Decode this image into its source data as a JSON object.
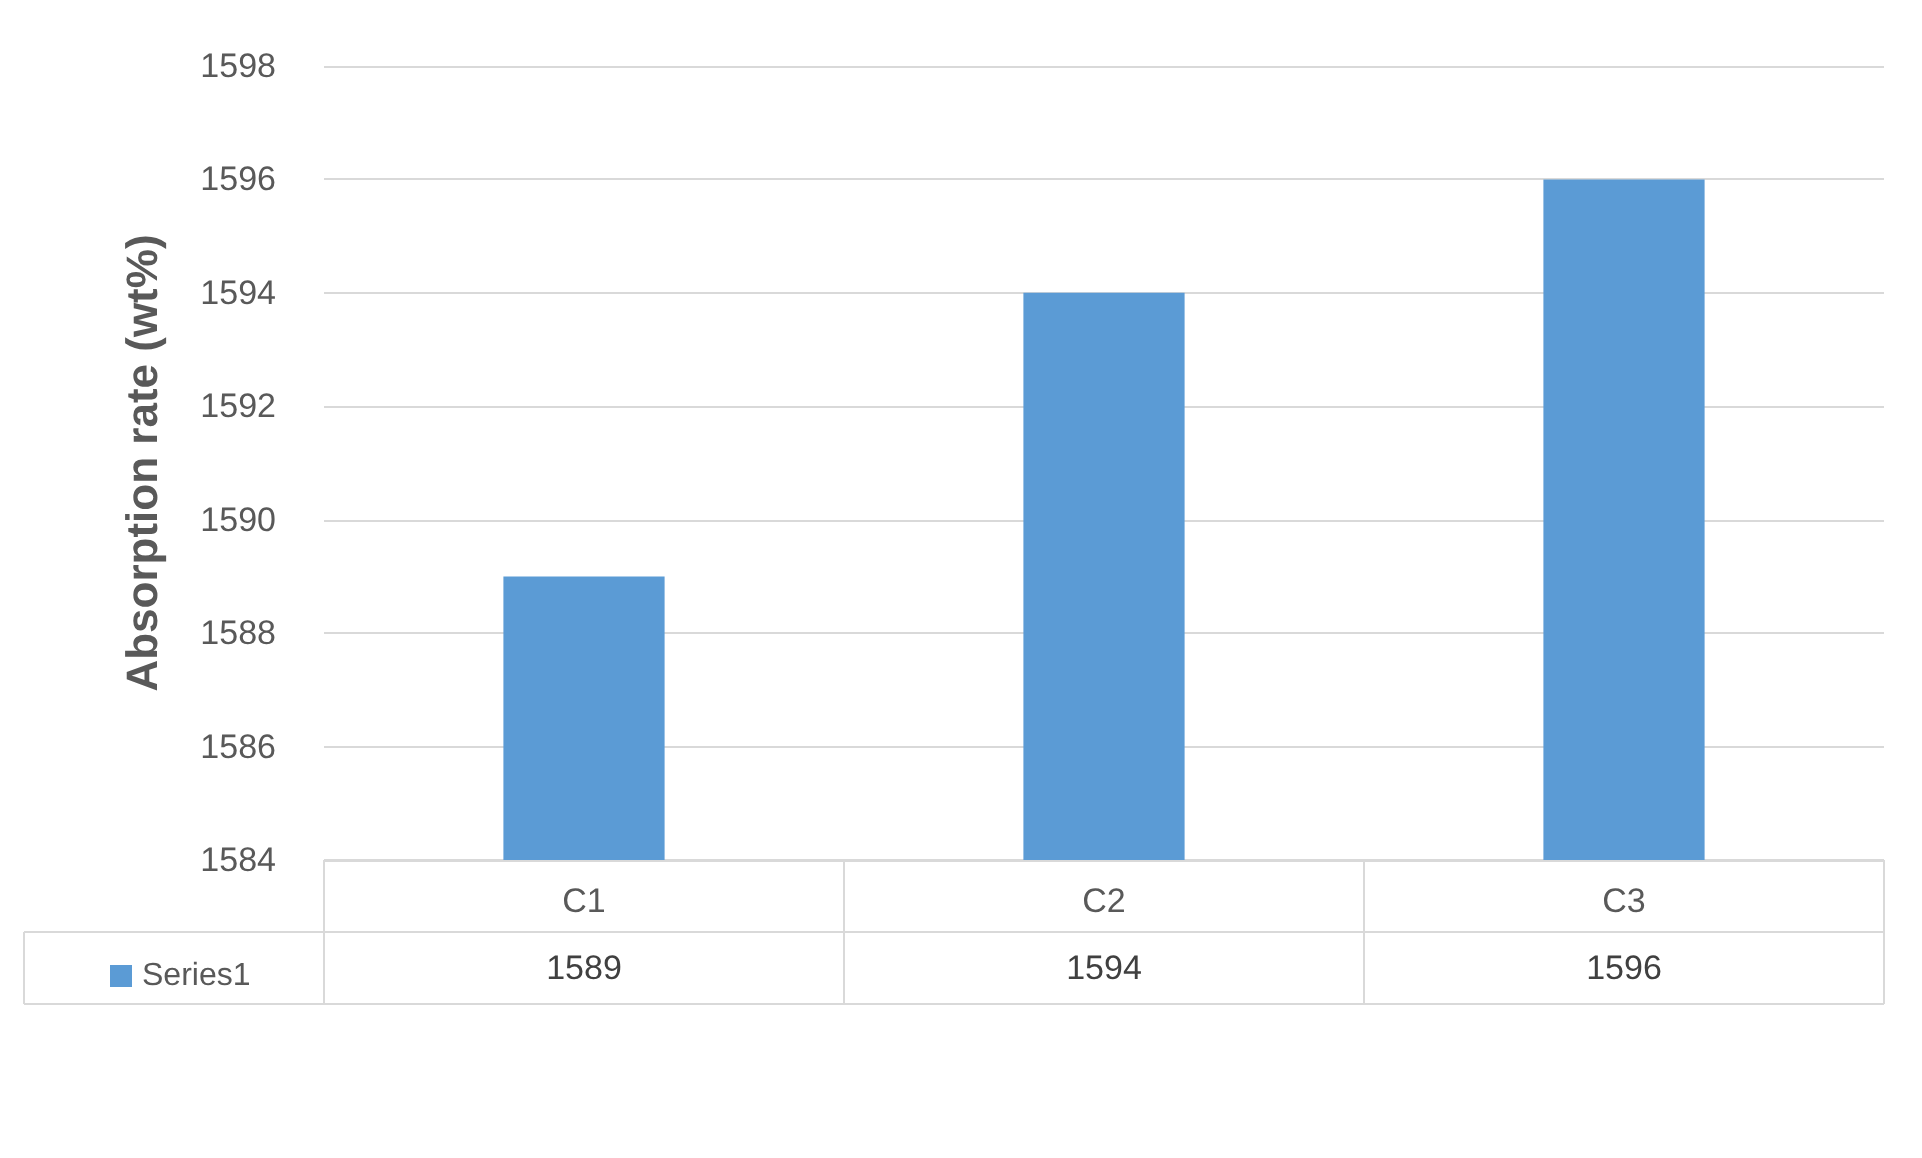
{
  "chart_data": {
    "type": "bar",
    "ylabel": "Absorption rate (wt%)",
    "categories": [
      "C1",
      "C2",
      "C3"
    ],
    "series": [
      {
        "name": "Series1",
        "color": "#5b9bd5",
        "values": [
          1589,
          1594,
          1596
        ]
      }
    ],
    "ylim": [
      1584,
      1598
    ],
    "yticks": [
      1584,
      1586,
      1588,
      1590,
      1592,
      1594,
      1596,
      1598
    ],
    "grid": "y",
    "legend": "bottom left",
    "data_labels": true
  }
}
